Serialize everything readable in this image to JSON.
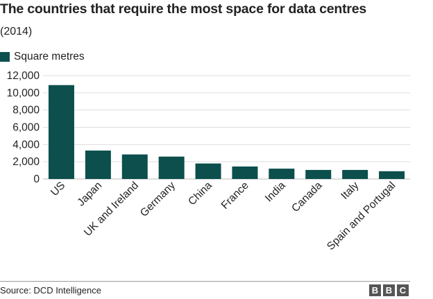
{
  "header": {
    "title": "The countries that require the most space for data centres",
    "subtitle": "(2014)"
  },
  "legend": {
    "label": "Square metres",
    "color": "#0c4f4d"
  },
  "chart_data": {
    "type": "bar",
    "title": "The countries that require the most space for data centres",
    "subtitle": "(2014)",
    "xlabel": "",
    "ylabel": "",
    "ylim": [
      0,
      12000
    ],
    "yticks": [
      0,
      2000,
      4000,
      6000,
      8000,
      10000,
      12000
    ],
    "ytick_labels": [
      "0",
      "2,000",
      "4,000",
      "6,000",
      "8,000",
      "10,000",
      "12,000"
    ],
    "grid": true,
    "legend_position": "top-left",
    "categories": [
      "US",
      "Japan",
      "UK and Ireland",
      "Germany",
      "China",
      "France",
      "India",
      "Canada",
      "Italy",
      "Spain and Portugal"
    ],
    "series": [
      {
        "name": "Square metres",
        "color": "#0c4f4d",
        "values": [
          10900,
          3300,
          2850,
          2600,
          1800,
          1450,
          1200,
          1050,
          1050,
          900
        ]
      }
    ]
  },
  "footer": {
    "source": "Source: DCD Intelligence",
    "logo_letters": [
      "B",
      "B",
      "C"
    ]
  }
}
